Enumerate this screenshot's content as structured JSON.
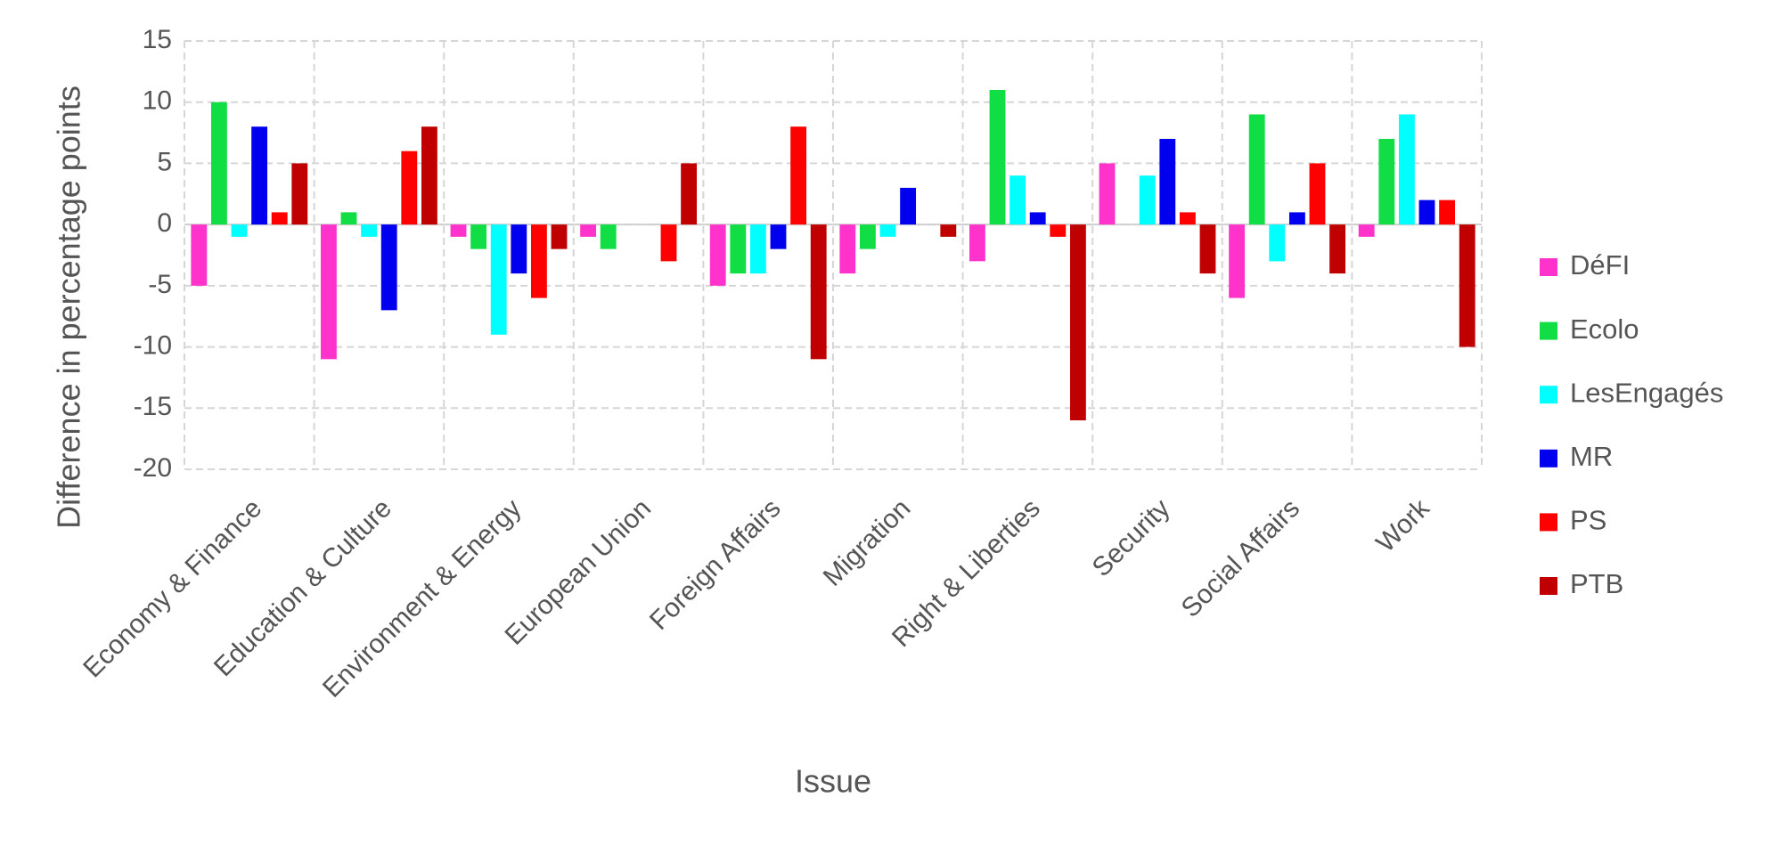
{
  "chart_data": {
    "type": "bar",
    "xlabel": "Issue",
    "ylabel": "Difference in percentage points",
    "categories": [
      "Economy & Finance",
      "Education & Culture",
      "Environment & Energy",
      "European Union",
      "Foreign Affairs",
      "Migration",
      "Right & Liberties",
      "Security",
      "Social Affairs",
      "Work"
    ],
    "series": [
      {
        "name": "DéFI",
        "color": "#ff33cc",
        "values": [
          -5,
          -11,
          -1,
          -1,
          -5,
          -4,
          -3,
          5,
          -6,
          -1
        ]
      },
      {
        "name": "Ecolo",
        "color": "#11dd44",
        "values": [
          10,
          1,
          -2,
          -2,
          -4,
          -2,
          11,
          0,
          9,
          7
        ]
      },
      {
        "name": "LesEngagés",
        "color": "#00ffff",
        "values": [
          -1,
          -1,
          -9,
          0,
          -4,
          -1,
          4,
          4,
          -3,
          9
        ]
      },
      {
        "name": "MR",
        "color": "#0000ee",
        "values": [
          8,
          -7,
          -4,
          0,
          -2,
          3,
          1,
          7,
          1,
          2
        ]
      },
      {
        "name": "PS",
        "color": "#ff0000",
        "values": [
          1,
          6,
          -6,
          -3,
          8,
          0,
          -1,
          1,
          5,
          2
        ]
      },
      {
        "name": "PTB",
        "color": "#c00000",
        "values": [
          5,
          8,
          -2,
          5,
          -11,
          -1,
          -16,
          -4,
          -4,
          -10
        ]
      }
    ],
    "ylim": [
      -20,
      15
    ],
    "yticks": [
      -20,
      -15,
      -10,
      -5,
      0,
      5,
      10,
      15
    ],
    "grid": true,
    "legend": "right"
  }
}
